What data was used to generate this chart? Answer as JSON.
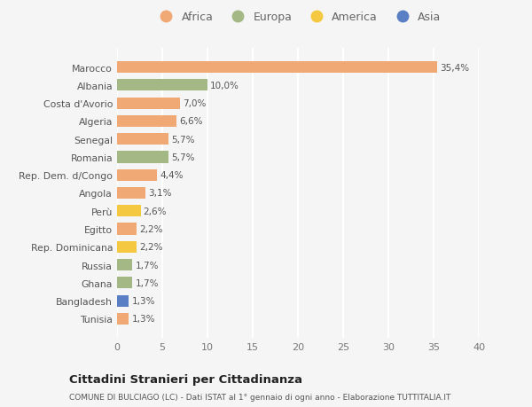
{
  "countries": [
    "Tunisia",
    "Bangladesh",
    "Ghana",
    "Russia",
    "Rep. Dominicana",
    "Egitto",
    "Perù",
    "Angola",
    "Rep. Dem. d/Congo",
    "Romania",
    "Senegal",
    "Algeria",
    "Costa d'Avorio",
    "Albania",
    "Marocco"
  ],
  "values": [
    1.3,
    1.3,
    1.7,
    1.7,
    2.2,
    2.2,
    2.6,
    3.1,
    4.4,
    5.7,
    5.7,
    6.6,
    7.0,
    10.0,
    35.4
  ],
  "labels": [
    "1,3%",
    "1,3%",
    "1,7%",
    "1,7%",
    "2,2%",
    "2,2%",
    "2,6%",
    "3,1%",
    "4,4%",
    "5,7%",
    "5,7%",
    "6,6%",
    "7,0%",
    "10,0%",
    "35,4%"
  ],
  "colors": [
    "#f0a875",
    "#5b7fc4",
    "#a3b884",
    "#a3b884",
    "#f5c842",
    "#f0a875",
    "#f5c842",
    "#f0a875",
    "#f0a875",
    "#a3b884",
    "#f0a875",
    "#f0a875",
    "#f0a875",
    "#a3b884",
    "#f0a875"
  ],
  "legend_labels": [
    "Africa",
    "Europa",
    "America",
    "Asia"
  ],
  "legend_colors": [
    "#f0a875",
    "#a3b884",
    "#f5c842",
    "#5b7fc4"
  ],
  "title": "Cittadini Stranieri per Cittadinanza",
  "subtitle": "COMUNE DI BULCIAGO (LC) - Dati ISTAT al 1° gennaio di ogni anno - Elaborazione TUTTITALIA.IT",
  "xlim": [
    0,
    40
  ],
  "xticks": [
    0,
    5,
    10,
    15,
    20,
    25,
    30,
    35,
    40
  ],
  "bg_color": "#f5f5f5",
  "grid_color": "#ffffff",
  "bar_height": 0.65
}
